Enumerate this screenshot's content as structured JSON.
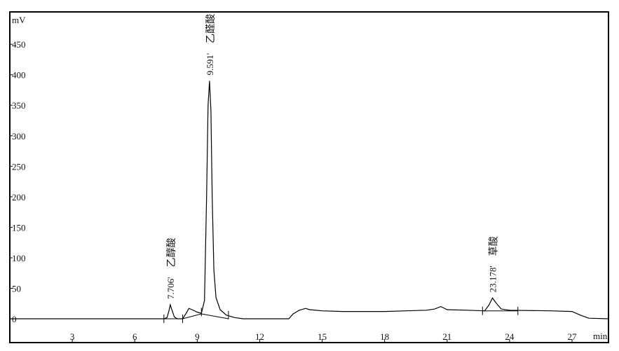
{
  "chart_data": {
    "type": "line",
    "title": "",
    "ylabel": "mV",
    "xlabel": "min",
    "xlim": [
      0,
      28.75
    ],
    "ylim": [
      -39,
      503
    ],
    "grid": false,
    "x_ticks": [
      3,
      6,
      9,
      12,
      15,
      18,
      21,
      24,
      27
    ],
    "x_tick_labels": [
      "3",
      "6",
      "9",
      "12",
      "15",
      "18",
      "21",
      "24",
      "27"
    ],
    "y_ticks": [
      0,
      50,
      100,
      150,
      200,
      250,
      300,
      350,
      400,
      450
    ],
    "y_tick_labels": [
      "0",
      "50",
      "100",
      "150",
      "200",
      "250",
      "300",
      "350",
      "400",
      "450"
    ],
    "series": [
      {
        "color": "#000000",
        "points": [
          [
            0,
            0
          ],
          [
            7.4,
            0
          ],
          [
            7.55,
            2
          ],
          [
            7.65,
            14
          ],
          [
            7.706,
            23
          ],
          [
            7.78,
            15
          ],
          [
            7.9,
            3
          ],
          [
            8.05,
            0
          ],
          [
            8.3,
            0
          ],
          [
            8.45,
            8
          ],
          [
            8.6,
            17
          ],
          [
            8.75,
            15
          ],
          [
            9.0,
            11
          ],
          [
            9.2,
            9
          ],
          [
            9.35,
            30
          ],
          [
            9.45,
            200
          ],
          [
            9.52,
            350
          ],
          [
            9.591,
            390
          ],
          [
            9.66,
            340
          ],
          [
            9.72,
            200
          ],
          [
            9.8,
            80
          ],
          [
            9.9,
            35
          ],
          [
            10.1,
            15
          ],
          [
            10.4,
            6
          ],
          [
            10.6,
            4
          ],
          [
            10.8,
            2
          ],
          [
            11.2,
            0
          ],
          [
            13.4,
            0
          ],
          [
            13.6,
            8
          ],
          [
            13.9,
            14
          ],
          [
            14.2,
            17
          ],
          [
            14.4,
            15
          ],
          [
            15,
            13
          ],
          [
            16,
            12
          ],
          [
            18,
            12
          ],
          [
            19,
            13
          ],
          [
            20,
            14
          ],
          [
            20.4,
            16
          ],
          [
            20.7,
            20
          ],
          [
            21,
            15
          ],
          [
            22,
            14
          ],
          [
            22.8,
            13
          ],
          [
            23.0,
            22
          ],
          [
            23.178,
            34
          ],
          [
            23.35,
            26
          ],
          [
            23.6,
            16
          ],
          [
            24,
            14
          ],
          [
            26,
            13
          ],
          [
            27,
            12
          ],
          [
            27.4,
            6
          ],
          [
            27.8,
            1
          ],
          [
            28.75,
            0
          ]
        ]
      }
    ],
    "integration_baselines": [
      [
        [
          7.4,
          0
        ],
        [
          8.3,
          0
        ]
      ],
      [
        [
          8.3,
          0
        ],
        [
          9.2,
          8
        ],
        [
          10.5,
          0
        ]
      ],
      [
        [
          22.7,
          13
        ],
        [
          24.4,
          13
        ]
      ]
    ],
    "integration_ticks": [
      7.4,
      8.3,
      9.2,
      10.5,
      22.7,
      24.4
    ],
    "peaks": [
      {
        "time": 7.706,
        "height": 23,
        "time_label": "7.706'",
        "name": "乙醇酸"
      },
      {
        "time": 9.591,
        "height": 390,
        "time_label": "9.591'",
        "name": "乙醛酸"
      },
      {
        "time": 23.178,
        "height": 34,
        "time_label": "23.178'",
        "name": "草酸"
      }
    ]
  }
}
